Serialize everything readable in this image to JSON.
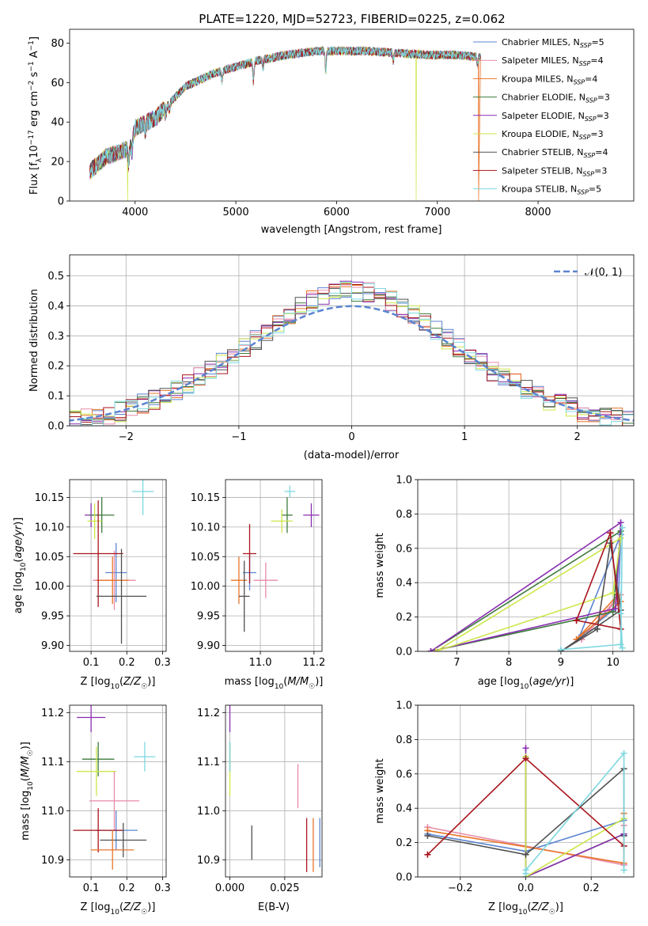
{
  "title": "PLATE=1220, MJD=52723, FIBERID=0225, z=0.062",
  "colors": {
    "chabrier_miles": "#5b84d0",
    "salpeter_miles": "#e88aa8",
    "kroupa_miles": "#e8752a",
    "chabrier_elodie": "#3d7a3d",
    "salpeter_elodie": "#8a2fb0",
    "kroupa_elodie": "#cde64a",
    "chabrier_stelib": "#505050",
    "salpeter_stelib": "#a8141c",
    "kroupa_stelib": "#7fd8e0",
    "gaussian": "#5b84d0"
  },
  "chart_data": [
    {
      "id": "spectrum",
      "type": "line",
      "xlabel": "wavelength [Angstrom, rest frame]",
      "ylabel": "Flux [f_λ 10^-17 erg cm^-2 s^-1 A^-1]",
      "xlim": [
        3350,
        8950
      ],
      "ylim": [
        0,
        87
      ],
      "xticks": [
        "4000",
        "5000",
        "6000",
        "7000",
        "8000"
      ],
      "yticks": [
        "0",
        "20",
        "40",
        "60",
        "80"
      ],
      "legend_placement": "top-right",
      "legend": [
        {
          "main": "Chabrier MILES, N",
          "sub": "SSP",
          "tail": "=5",
          "color_key": "chabrier_miles"
        },
        {
          "main": "Salpeter MILES, N",
          "sub": "SSP",
          "tail": "=4",
          "color_key": "salpeter_miles"
        },
        {
          "main": "Kroupa MILES, N",
          "sub": "SSP",
          "tail": "=4",
          "color_key": "kroupa_miles"
        },
        {
          "main": "Chabrier ELODIE, N",
          "sub": "SSP",
          "tail": "=3",
          "color_key": "chabrier_elodie"
        },
        {
          "main": "Salpeter ELODIE, N",
          "sub": "SSP",
          "tail": "=3",
          "color_key": "salpeter_elodie"
        },
        {
          "main": "Kroupa ELODIE, N",
          "sub": "SSP",
          "tail": "=3",
          "color_key": "kroupa_elodie"
        },
        {
          "main": "Chabrier STELIB, N",
          "sub": "SSP",
          "tail": "=4",
          "color_key": "chabrier_stelib"
        },
        {
          "main": "Salpeter STELIB, N",
          "sub": "SSP",
          "tail": "=3",
          "color_key": "salpeter_stelib"
        },
        {
          "main": "Kroupa STELIB, N",
          "sub": "SSP",
          "tail": "=5",
          "color_key": "kroupa_stelib"
        }
      ],
      "continuum": [
        [
          3550,
          15
        ],
        [
          3700,
          22
        ],
        [
          3850,
          25
        ],
        [
          3950,
          27
        ],
        [
          4000,
          37
        ],
        [
          4200,
          42
        ],
        [
          4500,
          58
        ],
        [
          4800,
          65
        ],
        [
          5000,
          68
        ],
        [
          5200,
          71
        ],
        [
          5500,
          74
        ],
        [
          5800,
          76
        ],
        [
          6000,
          76
        ],
        [
          6300,
          76
        ],
        [
          6600,
          75
        ],
        [
          6900,
          74
        ],
        [
          7200,
          74
        ],
        [
          7400,
          73
        ],
        [
          7600,
          72
        ],
        [
          7800,
          72
        ],
        [
          8000,
          71
        ],
        [
          8300,
          70
        ],
        [
          8500,
          69
        ],
        [
          8700,
          69
        ],
        [
          8900,
          68
        ]
      ],
      "absorption_lines": [
        [
          3934,
          8
        ],
        [
          3969,
          6
        ],
        [
          4102,
          4
        ],
        [
          4305,
          5
        ],
        [
          4341,
          4
        ],
        [
          4861,
          5
        ],
        [
          5175,
          10
        ],
        [
          5270,
          4
        ],
        [
          5892,
          10
        ],
        [
          6563,
          4
        ],
        [
          7400,
          4
        ]
      ],
      "dropouts": [
        {
          "wave": 3925,
          "series": "kroupa_elodie"
        },
        {
          "wave": 6790,
          "series": "kroupa_elodie"
        },
        {
          "wave": 7410,
          "series": "kroupa_miles"
        }
      ]
    },
    {
      "id": "residuals",
      "type": "step",
      "xlabel": "(data-model)/error",
      "ylabel": "Normed distribution",
      "xlim": [
        -2.5,
        2.5
      ],
      "ylim": [
        0,
        0.57
      ],
      "xticks": [
        -2,
        -1,
        0,
        1,
        2
      ],
      "yticks": [
        0.0,
        0.1,
        0.2,
        0.3,
        0.4,
        0.5
      ],
      "grid": true,
      "legend_placement": "top-right",
      "gaussian_label": "𝒩(0, 1)"
    },
    {
      "id": "age_vs_Z",
      "type": "errorbar",
      "xlabel": "Z [log₁₀(Z/Z☉)]",
      "ylabel": "age  [log₁₀(age/yr)]",
      "xlim": [
        0.04,
        0.31
      ],
      "ylim": [
        9.89,
        10.18
      ],
      "xticks": [
        0.1,
        0.2,
        0.3
      ],
      "yticks": [
        9.9,
        9.95,
        10.0,
        10.05,
        10.1,
        10.15
      ],
      "grid": true,
      "points": [
        {
          "s": "kroupa_stelib",
          "x": 0.245,
          "y": 10.16,
          "xe": 0.03,
          "ye": 0.04
        },
        {
          "s": "salpeter_elodie",
          "x": 0.1,
          "y": 10.12,
          "xe": 0.018,
          "ye": 0.02
        },
        {
          "s": "chabrier_elodie",
          "x": 0.13,
          "y": 10.12,
          "xe": 0.035,
          "ye": 0.03
        },
        {
          "s": "kroupa_elodie",
          "x": 0.11,
          "y": 10.11,
          "xe": 0.02,
          "ye": 0.03
        },
        {
          "s": "chabrier_miles",
          "x": 0.17,
          "y": 10.023,
          "xe": 0.03,
          "ye": 0.05
        },
        {
          "s": "salpeter_miles",
          "x": 0.165,
          "y": 10.01,
          "xe": 0.06,
          "ye": 0.05
        },
        {
          "s": "kroupa_miles",
          "x": 0.16,
          "y": 10.01,
          "xe": 0.045,
          "ye": 0.04
        },
        {
          "s": "salpeter_stelib",
          "x": 0.12,
          "y": 10.055,
          "xe": 0.07,
          "ye": 0.09
        },
        {
          "s": "chabrier_stelib",
          "x": 0.185,
          "y": 9.983,
          "xe": 0.07,
          "ye": 0.08
        }
      ]
    },
    {
      "id": "age_vs_mass",
      "type": "errorbar",
      "xlabel": "mass [log₁₀(M/M☉)]",
      "ylabel": "",
      "xlim": [
        10.87,
        11.23
      ],
      "ylim": [
        9.89,
        10.18
      ],
      "xticks": [
        11.0,
        11.2
      ],
      "yticks": [
        9.9,
        9.95,
        10.0,
        10.05,
        10.1,
        10.15
      ],
      "grid": true,
      "points": [
        {
          "s": "kroupa_stelib",
          "x": 11.11,
          "y": 10.16,
          "xe": 0.02,
          "ye": 0.01
        },
        {
          "s": "salpeter_elodie",
          "x": 11.19,
          "y": 10.12,
          "xe": 0.03,
          "ye": 0.02
        },
        {
          "s": "chabrier_elodie",
          "x": 11.1,
          "y": 10.12,
          "xe": 0.02,
          "ye": 0.03
        },
        {
          "s": "kroupa_elodie",
          "x": 11.08,
          "y": 10.11,
          "xe": 0.04,
          "ye": 0.02
        },
        {
          "s": "chabrier_miles",
          "x": 10.96,
          "y": 10.023,
          "xe": 0.025,
          "ye": 0.03
        },
        {
          "s": "salpeter_miles",
          "x": 11.02,
          "y": 10.01,
          "xe": 0.045,
          "ye": 0.03
        },
        {
          "s": "kroupa_miles",
          "x": 10.92,
          "y": 10.01,
          "xe": 0.03,
          "ye": 0.04
        },
        {
          "s": "salpeter_stelib",
          "x": 10.96,
          "y": 10.055,
          "xe": 0.025,
          "ye": 0.05
        },
        {
          "s": "chabrier_stelib",
          "x": 10.94,
          "y": 9.983,
          "xe": 0.02,
          "ye": 0.06
        }
      ]
    },
    {
      "id": "weight_vs_age",
      "type": "line",
      "xlabel": "age  [log₁₀(age/yr)]",
      "ylabel": "mass weight",
      "xlim": [
        6.25,
        10.4
      ],
      "ylim": [
        0,
        1
      ],
      "xticks": [
        7,
        8,
        9,
        10
      ],
      "yticks": [
        0.0,
        0.2,
        0.4,
        0.6,
        0.8,
        1.0
      ],
      "grid": true,
      "series": [
        {
          "s": "chabrier_miles",
          "points": [
            [
              9.35,
              0.08
            ],
            [
              10.0,
              0.24
            ],
            [
              10.1,
              0.28
            ],
            [
              10.15,
              0.68
            ],
            [
              9.35,
              0.08
            ]
          ]
        },
        {
          "s": "salpeter_miles",
          "points": [
            [
              9.4,
              0.07
            ],
            [
              10.05,
              0.29
            ],
            [
              10.15,
              0.33
            ],
            [
              10.05,
              0.3
            ],
            [
              9.4,
              0.07
            ]
          ]
        },
        {
          "s": "kroupa_miles",
          "points": [
            [
              9.3,
              0.07
            ],
            [
              10.1,
              0.33
            ],
            [
              10.15,
              0.29
            ],
            [
              9.3,
              0.07
            ]
          ]
        },
        {
          "s": "chabrier_elodie",
          "points": [
            [
              6.5,
              0.0
            ],
            [
              10.0,
              0.23
            ],
            [
              10.15,
              0.7
            ],
            [
              6.5,
              0.0
            ]
          ]
        },
        {
          "s": "salpeter_elodie",
          "points": [
            [
              6.5,
              0.0
            ],
            [
              10.05,
              0.25
            ],
            [
              10.15,
              0.75
            ],
            [
              6.5,
              0.0
            ]
          ]
        },
        {
          "s": "kroupa_elodie",
          "points": [
            [
              6.6,
              0.0
            ],
            [
              10.0,
              0.34
            ],
            [
              10.15,
              0.66
            ],
            [
              6.6,
              0.0
            ]
          ]
        },
        {
          "s": "chabrier_stelib",
          "points": [
            [
              9.0,
              0.0
            ],
            [
              9.7,
              0.13
            ],
            [
              9.95,
              0.63
            ],
            [
              10.15,
              0.24
            ],
            [
              9.0,
              0.0
            ]
          ]
        },
        {
          "s": "salpeter_stelib",
          "points": [
            [
              9.3,
              0.18
            ],
            [
              9.95,
              0.69
            ],
            [
              10.15,
              0.13
            ],
            [
              9.3,
              0.18
            ]
          ]
        },
        {
          "s": "kroupa_stelib",
          "points": [
            [
              9.0,
              0.01
            ],
            [
              10.15,
              0.04
            ],
            [
              10.18,
              0.72
            ],
            [
              10.15,
              0.22
            ],
            [
              10.18,
              0.02
            ]
          ]
        }
      ]
    },
    {
      "id": "mass_vs_Z",
      "type": "errorbar",
      "xlabel": "Z [log₁₀(Z/Z☉)]",
      "ylabel": "mass [log₁₀(M/M☉)]",
      "xlim": [
        0.04,
        0.31
      ],
      "ylim": [
        10.865,
        11.215
      ],
      "xticks": [
        0.1,
        0.2,
        0.3
      ],
      "yticks": [
        10.9,
        11.0,
        11.1,
        11.2
      ],
      "grid": true,
      "points": [
        {
          "s": "salpeter_elodie",
          "x": 0.1,
          "y": 11.19,
          "xe": 0.04,
          "ye": 0.03
        },
        {
          "s": "chabrier_elodie",
          "x": 0.12,
          "y": 11.105,
          "xe": 0.045,
          "ye": 0.035
        },
        {
          "s": "kroupa_elodie",
          "x": 0.115,
          "y": 11.08,
          "xe": 0.055,
          "ye": 0.05
        },
        {
          "s": "kroupa_stelib",
          "x": 0.25,
          "y": 11.11,
          "xe": 0.03,
          "ye": 0.03
        },
        {
          "s": "salpeter_miles",
          "x": 0.165,
          "y": 11.02,
          "xe": 0.07,
          "ye": 0.06
        },
        {
          "s": "chabrier_miles",
          "x": 0.17,
          "y": 10.96,
          "xe": 0.06,
          "ye": 0.04
        },
        {
          "s": "salpeter_stelib",
          "x": 0.12,
          "y": 10.96,
          "xe": 0.07,
          "ye": 0.045
        },
        {
          "s": "chabrier_stelib",
          "x": 0.19,
          "y": 10.94,
          "xe": 0.065,
          "ye": 0.035
        },
        {
          "s": "kroupa_miles",
          "x": 0.16,
          "y": 10.92,
          "xe": 0.06,
          "ye": 0.04
        }
      ]
    },
    {
      "id": "mass_vs_ebv",
      "type": "errorbar",
      "xlabel": "E(B-V)",
      "ylabel": "",
      "xlim": [
        -0.002,
        0.042
      ],
      "ylim": [
        10.865,
        11.215
      ],
      "xticks": [
        0.0,
        0.025
      ],
      "yticks": [
        10.9,
        11.0,
        11.1,
        11.2
      ],
      "grid": true,
      "points": [
        {
          "s": "salpeter_elodie",
          "x": 0.0,
          "y": 11.19,
          "xe": 0,
          "ye": 0.03
        },
        {
          "s": "chabrier_elodie",
          "x": 0.0,
          "y": 11.11,
          "xe": 0,
          "ye": 0.03
        },
        {
          "s": "kroupa_elodie",
          "x": 0.0,
          "y": 11.08,
          "xe": 0,
          "ye": 0.05
        },
        {
          "s": "kroupa_stelib",
          "x": 0.0,
          "y": 11.11,
          "xe": 0,
          "ye": 0.03
        },
        {
          "s": "salpeter_miles",
          "x": 0.031,
          "y": 11.05,
          "xe": 0,
          "ye": 0.045
        },
        {
          "s": "chabrier_stelib",
          "x": 0.01,
          "y": 10.935,
          "xe": 0,
          "ye": 0.035
        },
        {
          "s": "salpeter_stelib",
          "x": 0.035,
          "y": 10.93,
          "xe": 0,
          "ye": 0.055
        },
        {
          "s": "kroupa_miles",
          "x": 0.038,
          "y": 10.93,
          "xe": 0,
          "ye": 0.055
        },
        {
          "s": "chabrier_miles",
          "x": 0.041,
          "y": 10.935,
          "xe": 0,
          "ye": 0.05
        }
      ]
    },
    {
      "id": "weight_vs_Z",
      "type": "line",
      "xlabel": "Z [log₁₀(Z/Z☉)]",
      "ylabel": "mass weight",
      "xlim": [
        -0.33,
        0.33
      ],
      "ylim": [
        0,
        1
      ],
      "xticks": [
        -0.2,
        0.0,
        0.2
      ],
      "yticks": [
        0.0,
        0.2,
        0.4,
        0.6,
        0.8,
        1.0
      ],
      "grid": true,
      "series": [
        {
          "s": "chabrier_miles",
          "points": [
            [
              -0.3,
              0.25
            ],
            [
              0.0,
              0.15
            ],
            [
              0.3,
              0.33
            ],
            [
              0.3,
              0.24
            ],
            [
              0.3,
              0.07
            ]
          ]
        },
        {
          "s": "salpeter_miles",
          "points": [
            [
              -0.3,
              0.29
            ],
            [
              0.3,
              0.07
            ],
            [
              0.3,
              0.3
            ]
          ]
        },
        {
          "s": "kroupa_miles",
          "points": [
            [
              -0.3,
              0.27
            ],
            [
              0.3,
              0.08
            ],
            [
              0.3,
              0.37
            ]
          ]
        },
        {
          "s": "chabrier_elodie",
          "points": [
            [
              0.0,
              0.7
            ],
            [
              0.0,
              0.0
            ],
            [
              0.3,
              0.25
            ]
          ]
        },
        {
          "s": "salpeter_elodie",
          "points": [
            [
              0.0,
              0.75
            ],
            [
              0.0,
              0.0
            ],
            [
              0.3,
              0.25
            ]
          ]
        },
        {
          "s": "kroupa_elodie",
          "points": [
            [
              0.0,
              0.7
            ],
            [
              0.0,
              0.0
            ],
            [
              0.3,
              0.34
            ]
          ]
        },
        {
          "s": "chabrier_stelib",
          "points": [
            [
              -0.3,
              0.24
            ],
            [
              0.0,
              0.13
            ],
            [
              0.3,
              0.63
            ],
            [
              0.3,
              0.24
            ]
          ]
        },
        {
          "s": "salpeter_stelib",
          "points": [
            [
              -0.3,
              0.13
            ],
            [
              0.0,
              0.69
            ],
            [
              0.3,
              0.18
            ]
          ]
        },
        {
          "s": "kroupa_stelib",
          "points": [
            [
              0.0,
              0.02
            ],
            [
              0.0,
              0.04
            ],
            [
              0.3,
              0.72
            ],
            [
              0.3,
              0.04
            ]
          ]
        }
      ]
    }
  ]
}
